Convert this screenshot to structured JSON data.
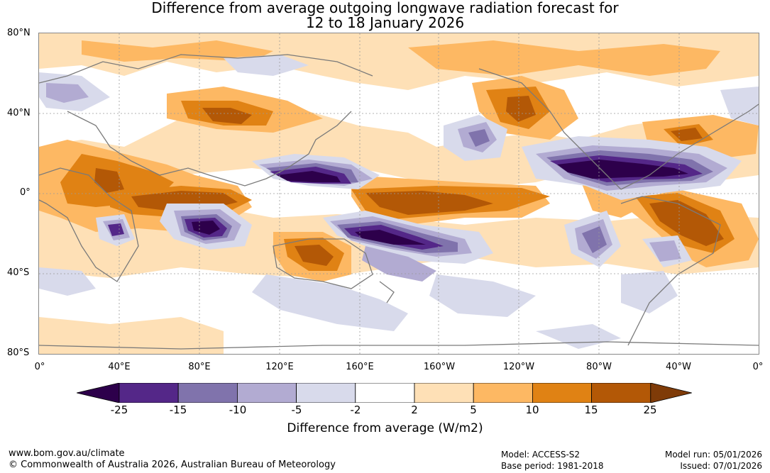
{
  "title": {
    "line1": "Difference from average outgoing longwave radiation forecast for",
    "line2": "12 to 18 January 2026"
  },
  "map": {
    "lat_labels": [
      "80°N",
      "40°N",
      "0°",
      "40°S",
      "80°S"
    ],
    "lon_labels": [
      "0°",
      "40°E",
      "80°E",
      "120°E",
      "160°E",
      "160°W",
      "120°W",
      "80°W",
      "40°W",
      "0°"
    ]
  },
  "colorbar": {
    "ticks": [
      "-25",
      "-15",
      "-10",
      "-5",
      "-2",
      "2",
      "5",
      "10",
      "15",
      "25"
    ],
    "label": "Difference from average (W/m2)",
    "colors": [
      "#2d004b",
      "#542788",
      "#8073ac",
      "#b2abd2",
      "#d8daeb",
      "#ffffff",
      "#fee0b6",
      "#fdb863",
      "#e08214",
      "#b35806",
      "#7f3b08"
    ]
  },
  "footer": {
    "website": "www.bom.gov.au/climate",
    "copyright": "© Commonwealth of Australia 2026, Australian Bureau of Meteorology",
    "model": "Model: ACCESS-S2",
    "base_period": "Base period: 1981-2018",
    "model_run": "Model run: 05/01/2026",
    "issued": "Issued: 07/01/2026"
  }
}
